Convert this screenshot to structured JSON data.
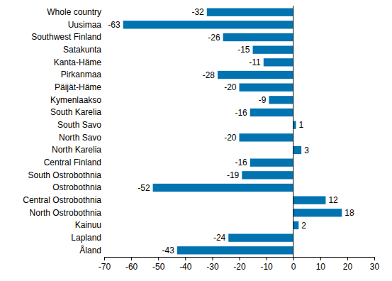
{
  "chart_data": {
    "type": "bar",
    "orientation": "horizontal",
    "categories": [
      "Whole country",
      "Uusimaa",
      "Southwest Finland",
      "Satakunta",
      "Kanta-Häme",
      "Pirkanmaa",
      "Päijät-Häme",
      "Kymenlaakso",
      "South Karelia",
      "South Savo",
      "North Savo",
      "North Karelia",
      "Central Finland",
      "South Ostrobothnia",
      "Ostrobothnia",
      "Central Ostrobothnia",
      "North Ostrobothnia",
      "Kainuu",
      "Lapland",
      "Åland"
    ],
    "values": [
      -32,
      -63,
      -26,
      -15,
      -11,
      -28,
      -20,
      -9,
      -16,
      1,
      -20,
      3,
      -16,
      -19,
      -52,
      12,
      18,
      2,
      -24,
      -43
    ],
    "color": "#0073b0",
    "xlim": [
      -70,
      30
    ],
    "xticks": [
      -70,
      -60,
      -50,
      -40,
      -30,
      -20,
      -10,
      0,
      10,
      20,
      30
    ],
    "grid": false,
    "data_labels": true
  }
}
